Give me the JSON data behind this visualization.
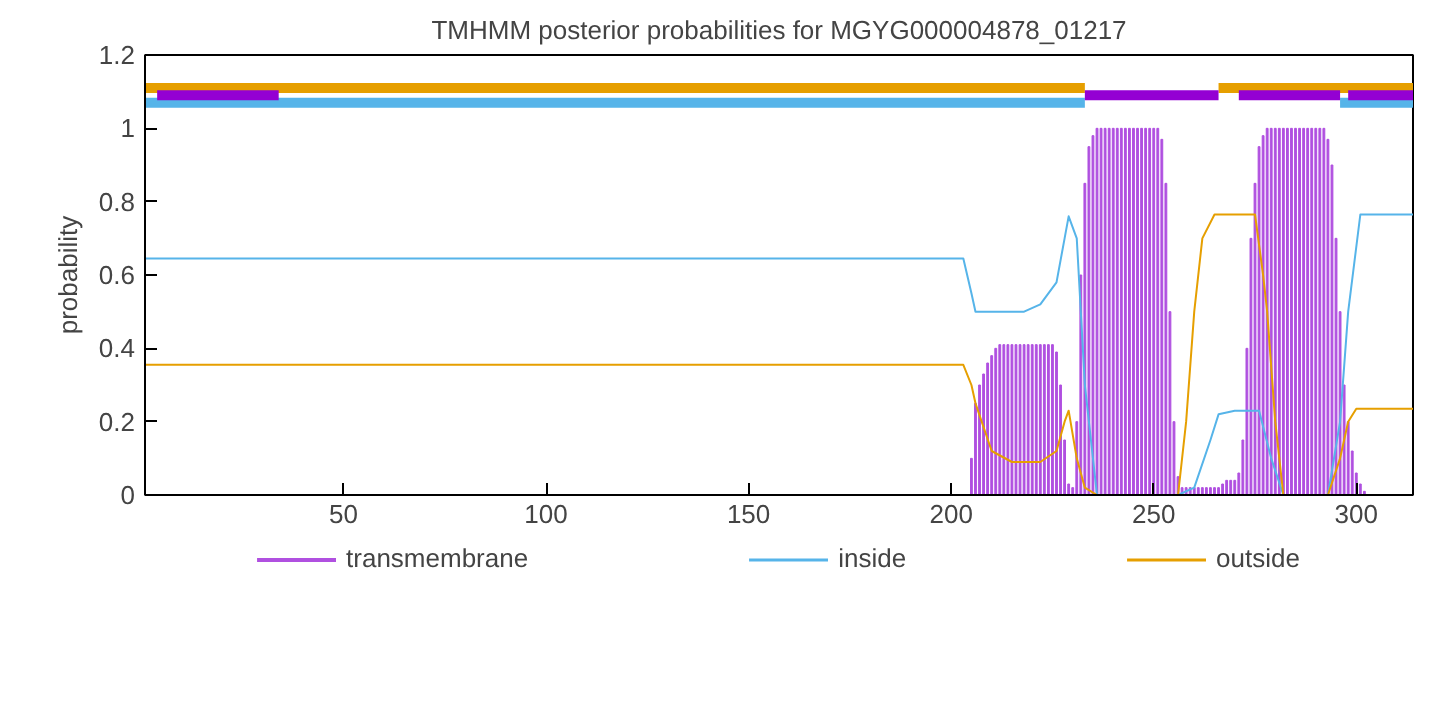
{
  "chart_data": {
    "type": "line",
    "title": "TMHMM posterior probabilities for MGYG000004878_01217",
    "ylabel": "probability",
    "xlim": [
      1,
      314
    ],
    "ylim": [
      0,
      1.2
    ],
    "xticks": [
      50,
      100,
      150,
      200,
      250,
      300
    ],
    "yticks": [
      0,
      0.2,
      0.4,
      0.6,
      0.8,
      1,
      1.2
    ],
    "grid": false,
    "legend": "bottom",
    "series": [
      {
        "name": "transmembrane",
        "type": "bar",
        "color": "#b050e0",
        "x": [
          204,
          205,
          206,
          207,
          208,
          209,
          210,
          211,
          212,
          213,
          214,
          215,
          216,
          217,
          218,
          219,
          220,
          221,
          222,
          223,
          224,
          225,
          226,
          227,
          228,
          229,
          230,
          231,
          232,
          233,
          234,
          235,
          236,
          237,
          238,
          239,
          240,
          241,
          242,
          243,
          244,
          245,
          246,
          247,
          248,
          249,
          250,
          251,
          252,
          253,
          254,
          255,
          256,
          257,
          258,
          259,
          260,
          261,
          262,
          263,
          264,
          265,
          266,
          267,
          268,
          269,
          270,
          271,
          272,
          273,
          274,
          275,
          276,
          277,
          278,
          279,
          280,
          281,
          282,
          283,
          284,
          285,
          286,
          287,
          288,
          289,
          290,
          291,
          292,
          293,
          294,
          295,
          296,
          297,
          298,
          299,
          300,
          301,
          302
        ],
        "values": [
          0.0,
          0.1,
          0.25,
          0.3,
          0.33,
          0.36,
          0.38,
          0.4,
          0.41,
          0.41,
          0.41,
          0.41,
          0.41,
          0.41,
          0.41,
          0.41,
          0.41,
          0.41,
          0.41,
          0.41,
          0.41,
          0.41,
          0.39,
          0.3,
          0.15,
          0.03,
          0.02,
          0.2,
          0.6,
          0.85,
          0.95,
          0.98,
          1.0,
          1.0,
          1.0,
          1.0,
          1.0,
          1.0,
          1.0,
          1.0,
          1.0,
          1.0,
          1.0,
          1.0,
          1.0,
          1.0,
          1.0,
          1.0,
          0.97,
          0.85,
          0.5,
          0.2,
          0.05,
          0.02,
          0.02,
          0.02,
          0.02,
          0.02,
          0.02,
          0.02,
          0.02,
          0.02,
          0.02,
          0.03,
          0.04,
          0.04,
          0.04,
          0.06,
          0.15,
          0.4,
          0.7,
          0.85,
          0.95,
          0.98,
          1.0,
          1.0,
          1.0,
          1.0,
          1.0,
          1.0,
          1.0,
          1.0,
          1.0,
          1.0,
          1.0,
          1.0,
          1.0,
          1.0,
          1.0,
          0.97,
          0.9,
          0.7,
          0.5,
          0.3,
          0.2,
          0.12,
          0.06,
          0.03,
          0.01
        ]
      },
      {
        "name": "inside",
        "type": "line",
        "color": "#56b4e9",
        "x": [
          1,
          203,
          205,
          206,
          218,
          222,
          226,
          228,
          229,
          231,
          233,
          236,
          256,
          260,
          264,
          266,
          270,
          276,
          279,
          282,
          293,
          296,
          298,
          301,
          314
        ],
        "values": [
          0.645,
          0.645,
          0.55,
          0.5,
          0.5,
          0.52,
          0.58,
          0.7,
          0.76,
          0.7,
          0.3,
          0.0,
          0.0,
          0.02,
          0.15,
          0.22,
          0.23,
          0.23,
          0.1,
          0.0,
          0.0,
          0.2,
          0.5,
          0.765,
          0.765
        ]
      },
      {
        "name": "outside",
        "type": "line",
        "color": "#e69f00",
        "x": [
          1,
          203,
          205,
          206,
          210,
          215,
          222,
          226,
          228,
          229,
          231,
          233,
          236,
          256,
          258,
          260,
          262,
          265,
          275,
          277,
          278,
          280,
          282,
          293,
          296,
          298,
          300,
          314
        ],
        "values": [
          0.355,
          0.355,
          0.3,
          0.25,
          0.12,
          0.09,
          0.09,
          0.12,
          0.2,
          0.23,
          0.1,
          0.02,
          0,
          0,
          0.2,
          0.5,
          0.7,
          0.765,
          0.765,
          0.6,
          0.5,
          0.2,
          0,
          0,
          0.1,
          0.2,
          0.235,
          0.235
        ]
      },
      {
        "color": "#e69f00",
        "x": [
          1,
          233,
          null,
          266,
          314
        ],
        "values": [
          1.11,
          1.11,
          null,
          1.11,
          1.11
        ]
      },
      {
        "color": "#56b4e9",
        "x": [
          1,
          233,
          null,
          296,
          314
        ],
        "values": [
          1.07,
          1.07,
          null,
          1.07,
          1.07
        ]
      },
      {
        "color": "#9400d3",
        "x": [
          4,
          34,
          null,
          233,
          266,
          null,
          271,
          296,
          null,
          298,
          314
        ],
        "values": [
          1.09,
          1.09,
          null,
          1.09,
          1.09,
          null,
          1.09,
          1.09,
          null,
          1.09,
          1.09
        ]
      }
    ]
  }
}
